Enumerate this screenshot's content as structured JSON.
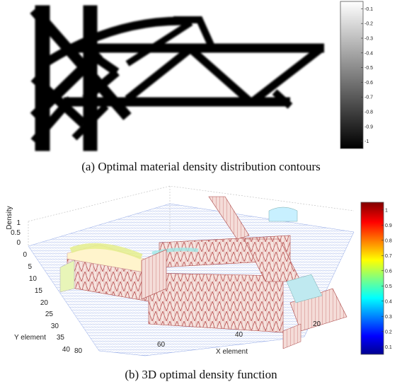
{
  "figure": {
    "panel_a": {
      "caption": "(a) Optimal material density distribution contours",
      "colorbar_ticks": [
        "-0.1",
        "-0.2",
        "-0.3",
        "-0.4",
        "-0.5",
        "-0.6",
        "-0.7",
        "-0.8",
        "-0.9",
        "-1"
      ],
      "colormap": "grayscale"
    },
    "panel_b": {
      "caption": "(b) 3D optimal density function",
      "z_label": "Density",
      "z_ticks": [
        "1",
        "0.5",
        "0"
      ],
      "y_label": "Y element",
      "y_ticks": [
        "0",
        "5",
        "10",
        "15",
        "20",
        "25",
        "30",
        "35",
        "40"
      ],
      "x_label": "X element",
      "x_ticks": [
        "80",
        "60",
        "40",
        "20"
      ],
      "colorbar_ticks": [
        "1",
        "0.9",
        "0.8",
        "0.7",
        "0.6",
        "0.5",
        "0.4",
        "0.3",
        "0.2",
        "0.1"
      ],
      "colormap": "jet",
      "colors": {
        "mesh_low": "#8fa6e6",
        "mesh_high": "#d87c7c",
        "wall": "#f2d0cf",
        "edge_mid": "#e5ef8c",
        "edge_mid2": "#9de7e6"
      }
    }
  }
}
